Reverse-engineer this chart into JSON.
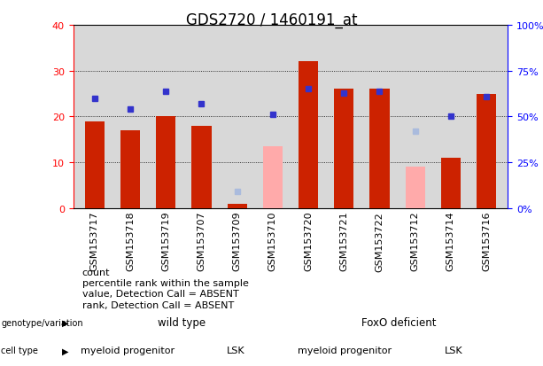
{
  "title": "GDS2720 / 1460191_at",
  "samples": [
    "GSM153717",
    "GSM153718",
    "GSM153719",
    "GSM153707",
    "GSM153709",
    "GSM153710",
    "GSM153720",
    "GSM153721",
    "GSM153722",
    "GSM153712",
    "GSM153714",
    "GSM153716"
  ],
  "count_values": [
    19,
    17,
    20,
    18,
    1,
    null,
    32,
    26,
    26,
    null,
    11,
    25
  ],
  "count_absent": [
    null,
    null,
    null,
    null,
    null,
    13.5,
    null,
    null,
    null,
    9,
    null,
    null
  ],
  "rank_pct_present": [
    60,
    54,
    64,
    57,
    null,
    51,
    65,
    63,
    64,
    null,
    50,
    61
  ],
  "rank_pct_absent": [
    null,
    null,
    null,
    null,
    9,
    null,
    null,
    null,
    null,
    null,
    null,
    null
  ],
  "rank_absent_value": [
    null,
    null,
    null,
    null,
    null,
    null,
    null,
    null,
    null,
    42,
    null,
    null
  ],
  "ylim_left": [
    0,
    40
  ],
  "ylim_right": [
    0,
    100
  ],
  "yticks_left": [
    0,
    10,
    20,
    30,
    40
  ],
  "yticks_right": [
    0,
    25,
    50,
    75,
    100
  ],
  "ytick_labels_right": [
    "0%",
    "25%",
    "50%",
    "75%",
    "100%"
  ],
  "bar_color_red": "#cc2200",
  "bar_color_pink": "#ffaaaa",
  "dot_color_blue": "#3333cc",
  "dot_color_lightblue": "#aabbdd",
  "background_color": "#d8d8d8",
  "genotype_wild": "wild type",
  "genotype_foxo": "FoxO deficient",
  "cell_myeloid": "myeloid progenitor",
  "cell_lsk": "LSK",
  "legend_items": [
    "count",
    "percentile rank within the sample",
    "value, Detection Call = ABSENT",
    "rank, Detection Call = ABSENT"
  ],
  "legend_colors": [
    "#cc2200",
    "#3333cc",
    "#ffaaaa",
    "#aabbdd"
  ],
  "title_fontsize": 12,
  "tick_fontsize": 8,
  "annot_fontsize": 8,
  "legend_fontsize": 8,
  "genotype_color_wild": "#aaeea0",
  "genotype_color_foxo": "#44cc44",
  "cell_color_myeloid": "#ffbbff",
  "cell_color_lsk": "#dd55dd"
}
